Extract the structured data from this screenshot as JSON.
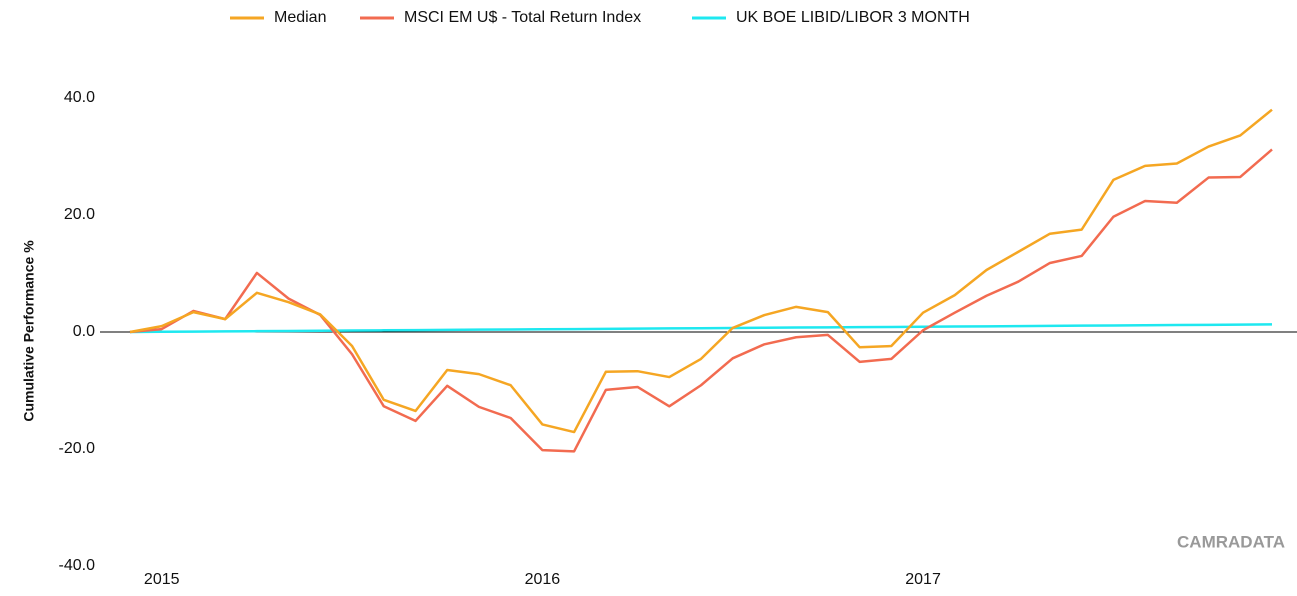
{
  "chart_data": {
    "type": "line",
    "categories": [
      null,
      "2015",
      null,
      null,
      null,
      null,
      null,
      null,
      null,
      null,
      null,
      null,
      null,
      "2016",
      null,
      null,
      null,
      null,
      null,
      null,
      null,
      null,
      null,
      null,
      null,
      "2017",
      null,
      null,
      null,
      null,
      null,
      null,
      null,
      null,
      null,
      null,
      null
    ],
    "series": [
      {
        "name": "Median",
        "color": "#f5a623",
        "values": [
          0,
          1.0,
          3.4,
          2.2,
          6.7,
          5.1,
          3.0,
          -2.4,
          -11.6,
          -13.5,
          -6.5,
          -7.2,
          -9.1,
          -15.8,
          -17.1,
          -6.8,
          -6.7,
          -7.7,
          -4.6,
          0.7,
          2.9,
          4.3,
          3.4,
          -2.6,
          -2.4,
          3.3,
          6.3,
          10.6,
          13.7,
          16.8,
          17.5,
          26.0,
          28.4,
          28.8,
          31.7,
          33.6,
          38.0
        ]
      },
      {
        "name": "MSCI EM U$ - Total Return Index",
        "color": "#f26b50",
        "values": [
          0,
          0.5,
          3.6,
          2.2,
          10.1,
          5.7,
          2.9,
          -3.8,
          -12.7,
          -15.2,
          -9.2,
          -12.8,
          -14.7,
          -20.2,
          -20.4,
          -9.9,
          -9.4,
          -12.7,
          -9.1,
          -4.5,
          -2.1,
          -0.9,
          -0.5,
          -5.1,
          -4.6,
          0.3,
          3.3,
          6.2,
          8.6,
          11.8,
          13.0,
          19.7,
          22.4,
          22.1,
          26.4,
          26.5,
          31.2
        ]
      },
      {
        "name": "UK BOE LIBID/LIBOR 3 MONTH",
        "color": "#1ee8f0",
        "values": [
          0,
          0.04,
          0.07,
          0.11,
          0.14,
          0.18,
          0.22,
          0.25,
          0.29,
          0.32,
          0.36,
          0.4,
          0.43,
          0.47,
          0.5,
          0.54,
          0.58,
          0.61,
          0.65,
          0.68,
          0.72,
          0.76,
          0.79,
          0.83,
          0.86,
          0.9,
          0.94,
          0.97,
          1.01,
          1.04,
          1.08,
          1.12,
          1.15,
          1.19,
          1.22,
          1.26,
          1.3
        ]
      }
    ],
    "y_label": "Cumulative Performance %",
    "ylim": [
      -40,
      40
    ],
    "yticks": [
      {
        "value": -40,
        "label": "-40.0"
      },
      {
        "value": -20,
        "label": "-20.0"
      },
      {
        "value": 0,
        "label": "0.0"
      },
      {
        "value": 20,
        "label": "20.0"
      },
      {
        "value": 40,
        "label": "40.0"
      }
    ],
    "watermark": "CAMRADATA",
    "grid": false,
    "legend": "top"
  }
}
